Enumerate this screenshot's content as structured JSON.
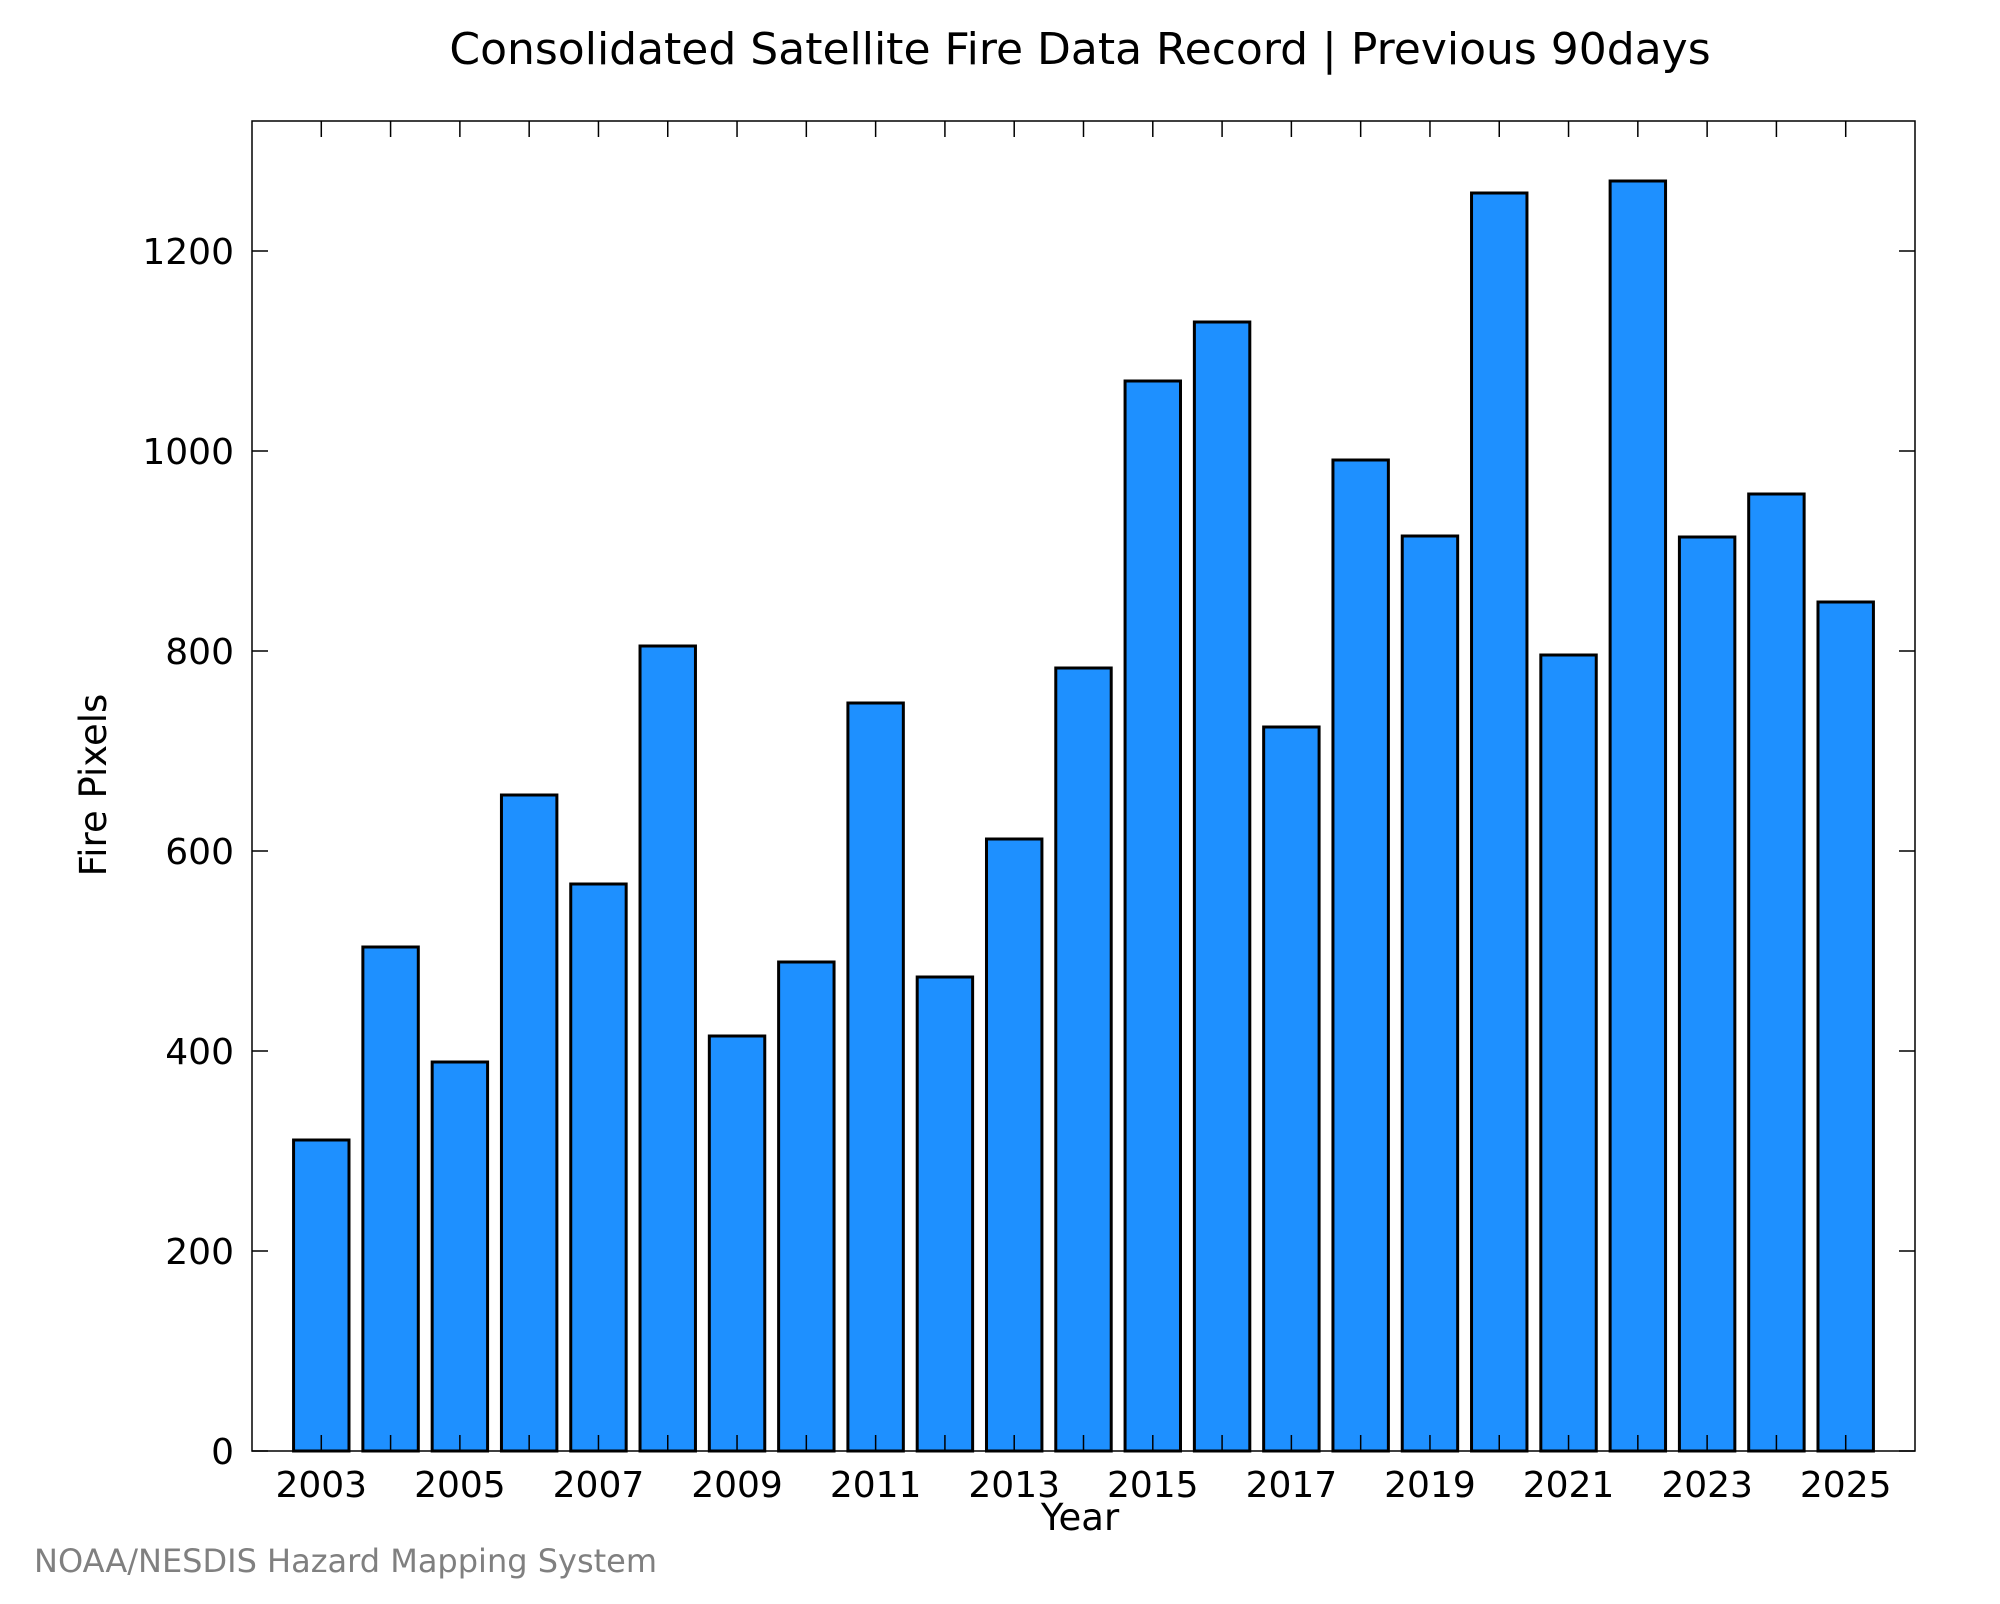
{
  "chart_data": {
    "type": "bar",
    "title": "Consolidated Satellite Fire Data Record | Previous 90days",
    "xlabel": "Year",
    "ylabel": "Fire Pixels",
    "credit": "NOAA/NESDIS Hazard Mapping System",
    "categories": [
      2003,
      2004,
      2005,
      2006,
      2007,
      2008,
      2009,
      2010,
      2011,
      2012,
      2013,
      2014,
      2015,
      2016,
      2017,
      2018,
      2019,
      2020,
      2021,
      2022,
      2023,
      2024,
      2025
    ],
    "values": [
      311,
      504,
      389,
      656,
      567,
      805,
      415,
      489,
      748,
      474,
      612,
      783,
      1070,
      1129,
      724,
      991,
      915,
      1258,
      796,
      1270,
      914,
      957,
      849
    ],
    "xticks": [
      2003,
      2005,
      2007,
      2009,
      2011,
      2013,
      2015,
      2017,
      2019,
      2021,
      2023,
      2025
    ],
    "yticks": [
      0,
      200,
      400,
      600,
      800,
      1000,
      1200
    ],
    "xlim": [
      2002,
      2026
    ],
    "ylim": [
      0,
      1330
    ],
    "grid": false,
    "legend": "none",
    "colors": {
      "bar_fill": "#1e90ff",
      "bar_stroke": "#000000",
      "credit_text": "#808080"
    }
  }
}
